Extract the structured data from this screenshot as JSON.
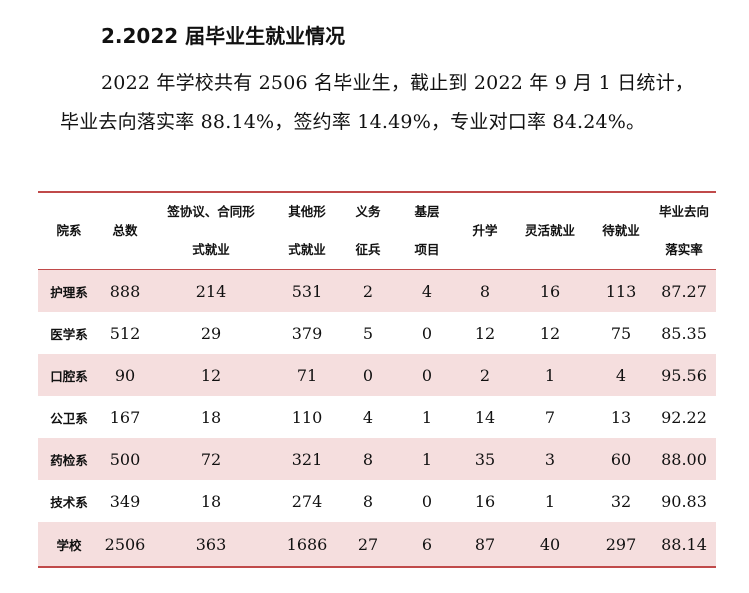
{
  "section": {
    "heading": "2.2022 届毕业生就业情况",
    "para_line1": "2022 年学校共有 2506 名毕业生，截止到 2022 年 9 月 1 日统计，",
    "para_line2": "毕业去向落实率 88.14%，签约率 14.49%，专业对口率 84.24%。"
  },
  "table": {
    "headers": [
      {
        "l1": "院系",
        "l2": ""
      },
      {
        "l1": "总数",
        "l2": ""
      },
      {
        "l1": "签协议、合同形",
        "l2": "式就业"
      },
      {
        "l1": "其他形",
        "l2": "式就业"
      },
      {
        "l1": "义务",
        "l2": "征兵"
      },
      {
        "l1": "基层",
        "l2": "项目"
      },
      {
        "l1": "升学",
        "l2": ""
      },
      {
        "l1": "灵活就业",
        "l2": ""
      },
      {
        "l1": "待就业",
        "l2": ""
      },
      {
        "l1": "毕业去向",
        "l2": "落实率"
      }
    ],
    "rows": [
      [
        "护理系",
        "888",
        "214",
        "531",
        "2",
        "4",
        "8",
        "16",
        "113",
        "87.27"
      ],
      [
        "医学系",
        "512",
        "29",
        "379",
        "5",
        "0",
        "12",
        "12",
        "75",
        "85.35"
      ],
      [
        "口腔系",
        "90",
        "12",
        "71",
        "0",
        "0",
        "2",
        "1",
        "4",
        "95.56"
      ],
      [
        "公卫系",
        "167",
        "18",
        "110",
        "4",
        "1",
        "14",
        "7",
        "13",
        "92.22"
      ],
      [
        "药检系",
        "500",
        "72",
        "321",
        "8",
        "1",
        "35",
        "3",
        "60",
        "88.00"
      ],
      [
        "技术系",
        "349",
        "18",
        "274",
        "8",
        "0",
        "16",
        "1",
        "32",
        "90.83"
      ],
      [
        "学校",
        "2506",
        "363",
        "1686",
        "27",
        "6",
        "87",
        "40",
        "297",
        "88.14"
      ]
    ]
  },
  "colors": {
    "rule": "#c04a4a",
    "row_shade": "#f5dede"
  }
}
